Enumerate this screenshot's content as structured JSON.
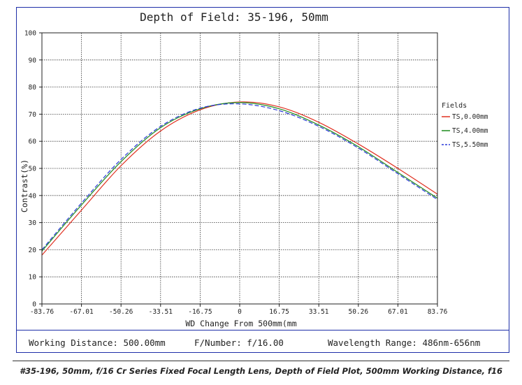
{
  "chart_data": {
    "type": "line",
    "title": "Depth of Field: 35-196, 50mm",
    "xlabel": "WD Change From 500mm(mm",
    "ylabel": "Contrast(%)",
    "xlim": [
      -83.76,
      83.76
    ],
    "ylim": [
      0,
      100
    ],
    "x_ticks": [
      "-83.76",
      "-67.01",
      "-50.26",
      "-33.51",
      "-16.75",
      "0",
      "16.75",
      "33.51",
      "50.26",
      "67.01",
      "83.76"
    ],
    "y_ticks": [
      "0",
      "10",
      "20",
      "30",
      "40",
      "50",
      "60",
      "70",
      "80",
      "90",
      "100"
    ],
    "grid": true,
    "legend_title": "Fields",
    "legend_position": "right",
    "x": [
      -83.76,
      -67.01,
      -50.26,
      -33.51,
      -16.75,
      0,
      16.75,
      33.51,
      50.26,
      67.01,
      83.76
    ],
    "series": [
      {
        "name": "TS,0.00mm",
        "color": "#e03020",
        "dashed": false,
        "values": [
          18.0,
          34.6,
          51.0,
          63.8,
          71.6,
          74.5,
          72.7,
          67.0,
          59.0,
          50.0,
          40.5
        ]
      },
      {
        "name": "TS,4.00mm",
        "color": "#1e8a1e",
        "dashed": false,
        "values": [
          19.5,
          36.5,
          52.5,
          65.0,
          72.0,
          74.3,
          72.0,
          66.0,
          58.0,
          48.5,
          39.0
        ]
      },
      {
        "name": "TS,5.50mm",
        "color": "#2a3ad8",
        "dashed": true,
        "values": [
          20.0,
          37.2,
          53.3,
          65.5,
          72.2,
          73.8,
          71.3,
          65.5,
          57.5,
          48.0,
          38.5
        ]
      }
    ]
  },
  "info": {
    "working_distance": "Working Distance: 500.00mm",
    "f_number": "F/Number: f/16.00",
    "wavelength": "Wavelength Range: 486nm-656nm"
  },
  "caption": "#35-196, 50mm, f/16 Cr Series Fixed Focal Length Lens, Depth of Field Plot, 500mm Working Distance, f16"
}
